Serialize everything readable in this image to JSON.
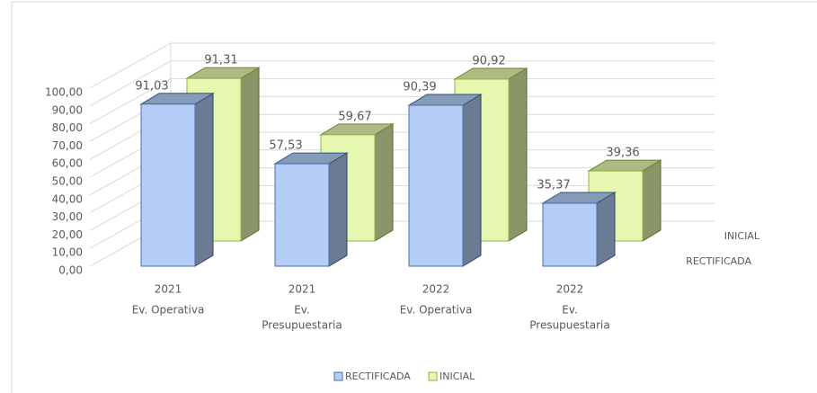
{
  "chart_data": {
    "type": "bar3d",
    "categories": [
      [
        "2021",
        "Ev. Operativa"
      ],
      [
        "2021",
        "Ev.",
        "Presupuestaria"
      ],
      [
        "2022",
        "Ev. Operativa"
      ],
      [
        "2022",
        "Ev.",
        "Presupuestaria"
      ]
    ],
    "series": [
      {
        "name": "RECTIFICADA",
        "color": "#b3cdf6",
        "stroke": "#4a6fa8",
        "values": [
          91.03,
          57.53,
          90.39,
          35.37
        ],
        "value_labels": [
          "91,03",
          "57,53",
          "90,39",
          "35,37"
        ]
      },
      {
        "name": "INICIAL",
        "color": "#e6f8b0",
        "stroke": "#8cb341",
        "values": [
          91.31,
          59.67,
          90.92,
          39.36
        ],
        "value_labels": [
          "91,31",
          "59,67",
          "90,92",
          "39,36"
        ]
      }
    ],
    "ylim": [
      0,
      100
    ],
    "yticks": [
      {
        "value": 0,
        "label": "0,00"
      },
      {
        "value": 10,
        "label": "10,00"
      },
      {
        "value": 20,
        "label": "20,00"
      },
      {
        "value": 30,
        "label": "30,00"
      },
      {
        "value": 40,
        "label": "40,00"
      },
      {
        "value": 50,
        "label": "50,00"
      },
      {
        "value": 60,
        "label": "60,00"
      },
      {
        "value": 70,
        "label": "70,00"
      },
      {
        "value": 80,
        "label": "80,00"
      },
      {
        "value": 90,
        "label": "90,00"
      },
      {
        "value": 100,
        "label": "100,00"
      }
    ],
    "grid": true,
    "legend": "bottom"
  }
}
